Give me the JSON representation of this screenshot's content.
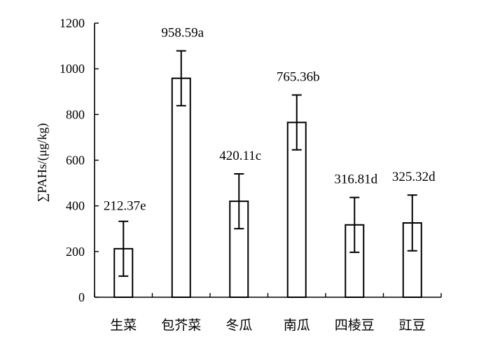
{
  "chart_data": {
    "type": "bar",
    "categories": [
      "生菜",
      "包芥菜",
      "冬瓜",
      "南瓜",
      "四棱豆",
      "豇豆"
    ],
    "values": [
      212.37,
      958.59,
      420.11,
      765.36,
      316.81,
      325.32
    ],
    "error": [
      120,
      120,
      120,
      120,
      120,
      122
    ],
    "data_labels": [
      "212.37e",
      "958.59a",
      "420.11c",
      "765.36b",
      "316.81d",
      "325.32d"
    ],
    "ylabel": "∑PAHs/(μg/kg)",
    "xlabel": "",
    "ylim": [
      0,
      1200
    ],
    "yticks": [
      0,
      200,
      400,
      600,
      800,
      1000,
      1200
    ],
    "grid": false,
    "colors": {
      "bar_fill": "#ffffff",
      "bar_stroke": "#000000",
      "error_bar": "#000000",
      "axis": "#000000"
    }
  }
}
